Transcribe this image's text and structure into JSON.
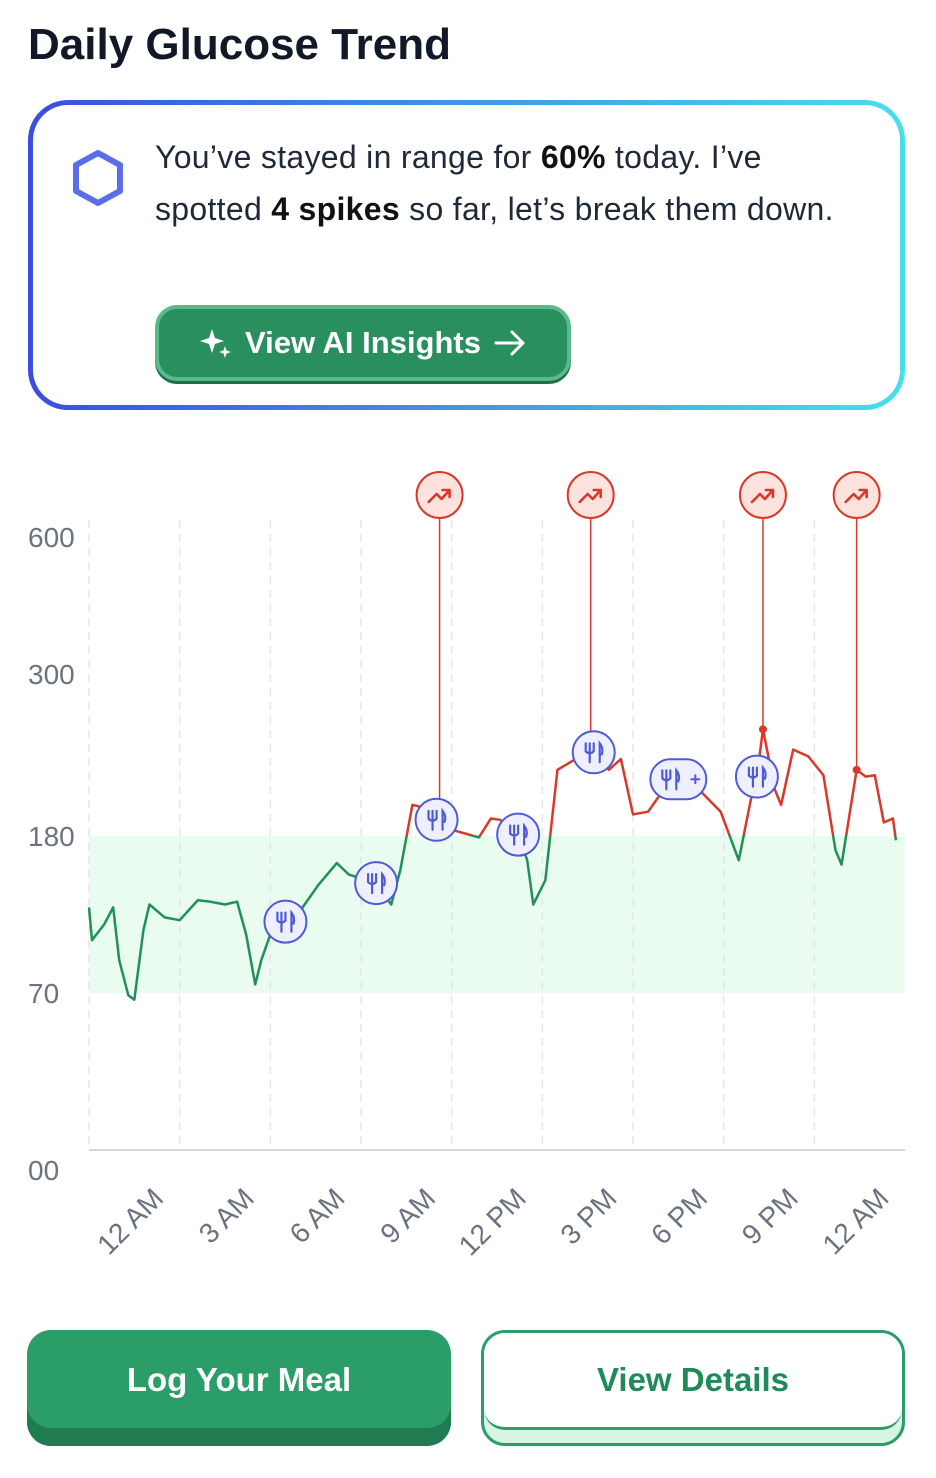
{
  "header": {
    "title": "Daily Glucose Trend"
  },
  "insight": {
    "parts": [
      "You’ve stayed in range for ",
      "60%",
      " today. I’ve spotted ",
      "4 spikes",
      " so far, let’s break them down."
    ],
    "button": "View AI Insights"
  },
  "chart_data": {
    "type": "line",
    "x": [
      0,
      0.1,
      0.5,
      0.8,
      1.0,
      1.3,
      1.5,
      1.8,
      2.0,
      2.5,
      3.0,
      3.6,
      4.0,
      4.5,
      4.9,
      5.2,
      5.5,
      5.7,
      6.0,
      6.5,
      7.0,
      7.6,
      8.2,
      8.6,
      9.5,
      10.0,
      10.3,
      10.7,
      11.1,
      11.5,
      12.1,
      12.9,
      13.3,
      13.6,
      14.2,
      14.5,
      14.7,
      15.1,
      15.5,
      16.1,
      16.7,
      17.2,
      17.6,
      18.0,
      18.5,
      19.0,
      19.5,
      20.2,
      20.9,
      21.5,
      21.9,
      22.1,
      22.3,
      22.7,
      22.9,
      23.3,
      23.8,
      24.3,
      24.7,
      24.9,
      25.4,
      25.7,
      26.0,
      26.3,
      26.6,
      26.7
    ],
    "values": [
      130,
      107,
      118,
      130,
      93,
      69,
      67,
      114,
      132,
      123,
      121,
      135,
      134,
      132,
      134,
      111,
      76,
      93,
      111,
      120,
      128,
      146,
      161,
      153,
      147,
      132,
      156,
      203,
      201,
      192,
      184,
      179,
      193,
      192,
      181,
      163,
      132,
      149,
      229,
      237,
      242,
      229,
      237,
      196,
      198,
      214,
      222,
      214,
      198,
      163,
      207,
      224,
      259,
      214,
      203,
      244,
      239,
      225,
      170,
      160,
      229,
      224,
      225,
      190,
      193,
      177
    ],
    "color": "#1f9158",
    "high_color": "#d9392b",
    "target_range": [
      70,
      180
    ],
    "range_color": "#eafcef",
    "xlim": [
      0,
      27
    ],
    "xticks": [
      {
        "value": 0,
        "label": "12 AM"
      },
      {
        "value": 3,
        "label": "3 AM"
      },
      {
        "value": 6,
        "label": "6 AM"
      },
      {
        "value": 9,
        "label": "9 AM"
      },
      {
        "value": 12,
        "label": "12 PM"
      },
      {
        "value": 15,
        "label": "3 PM"
      },
      {
        "value": 18,
        "label": "6 PM"
      },
      {
        "value": 21,
        "label": "9 PM"
      },
      {
        "value": 24,
        "label": "12 AM"
      }
    ],
    "ylim": [
      0,
      600
    ],
    "yticks": [
      {
        "value": 0,
        "label": "00"
      },
      70,
      180,
      300,
      600
    ],
    "grid": true,
    "meal_markers": [
      {
        "x": 6.5,
        "type": "meal"
      },
      {
        "x": 9.5,
        "type": "meal"
      },
      {
        "x": 11.5,
        "type": "meal"
      },
      {
        "x": 14.2,
        "type": "meal"
      },
      {
        "x": 16.7,
        "type": "meal"
      },
      {
        "x": 19.5,
        "type": "meal_plus"
      },
      {
        "x": 22.1,
        "type": "meal"
      }
    ],
    "spikes": [
      11.6,
      16.6,
      22.3,
      25.4
    ]
  },
  "actions": {
    "primary": "Log Your Meal",
    "secondary": "View Details"
  }
}
